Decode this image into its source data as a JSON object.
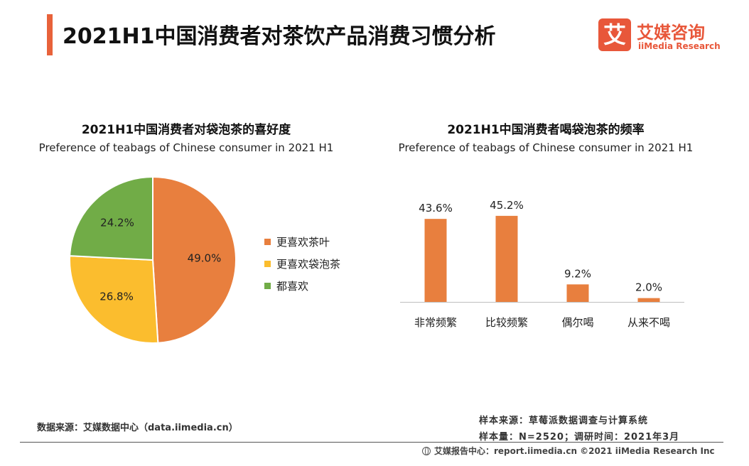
{
  "header": {
    "title": "2021H1中国消费者对茶饮产品消费习惯分析",
    "logo_mark": "艾",
    "logo_cn": "艾媒咨询",
    "logo_en": "iiMedia Research"
  },
  "colors": {
    "accent": "#e8623a",
    "orange": "#e87f3e",
    "yellow": "#fbbd2e",
    "green": "#71ac47"
  },
  "chart_data": [
    {
      "type": "pie",
      "title": "2021H1中国消费者对袋泡茶的喜好度",
      "subtitle": "Preference of teabags of Chinese consumer in 2021 H1",
      "slices": [
        {
          "label": "更喜欢茶叶",
          "value": 49.0,
          "display": "49.0%",
          "color": "#e87f3e"
        },
        {
          "label": "更喜欢袋泡茶",
          "value": 26.8,
          "display": "26.8%",
          "color": "#fbbd2e"
        },
        {
          "label": "都喜欢",
          "value": 24.2,
          "display": "24.2%",
          "color": "#71ac47"
        }
      ],
      "legend_position": "right"
    },
    {
      "type": "bar",
      "title": "2021H1中国消费者喝袋泡茶的频率",
      "subtitle": "Preference of teabags of Chinese consumer in 2021 H1",
      "categories": [
        "非常频繁",
        "比较频繁",
        "偶尔喝",
        "从来不喝"
      ],
      "values": [
        43.6,
        45.2,
        9.2,
        2.0
      ],
      "labels": [
        "43.6%",
        "45.2%",
        "9.2%",
        "2.0%"
      ],
      "color": "#e87f3e",
      "ylim": [
        0,
        50
      ],
      "grid": false
    }
  ],
  "footer": {
    "data_source": "数据来源：艾媒数据中心（data.iimedia.cn）",
    "sample_source": "样本来源：草莓派数据调查与计算系统",
    "sample_size": "样本量：N=2520；调研时间：2021年3月",
    "bottom": "艾媒报告中心：report.iimedia.cn  ©2021  iiMedia Research  Inc"
  }
}
